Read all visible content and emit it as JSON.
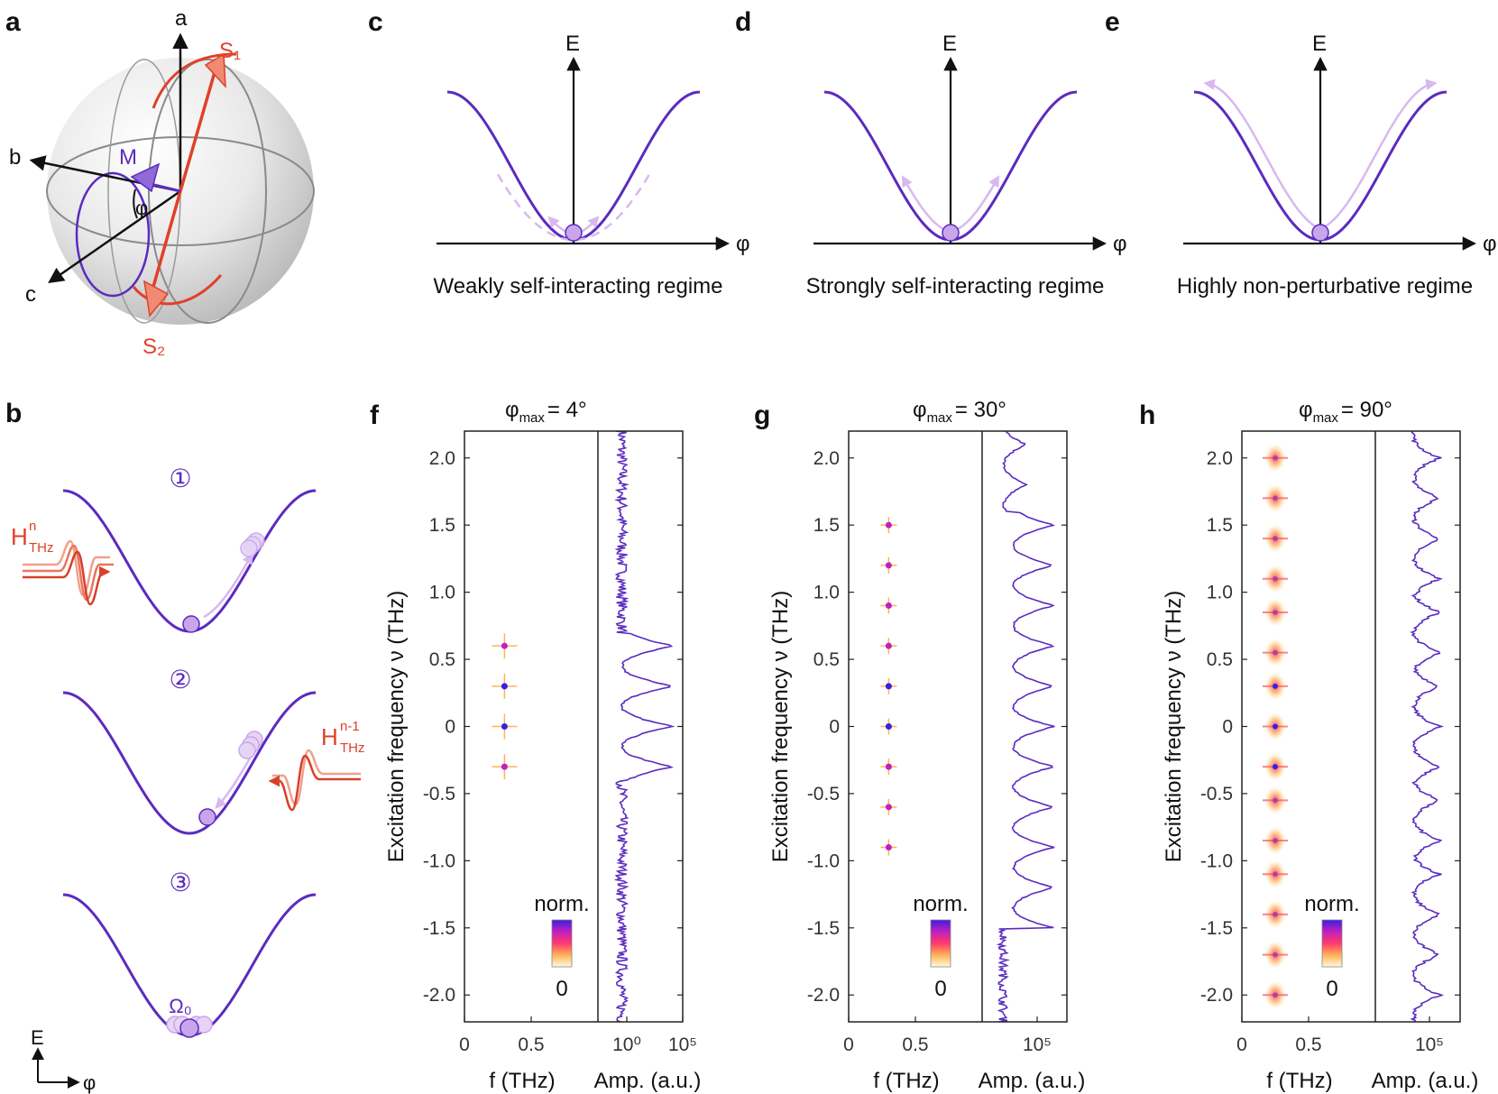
{
  "panel_labels": {
    "a": "a",
    "b": "b",
    "c": "c",
    "d": "d",
    "e": "e",
    "f": "f",
    "g": "g",
    "h": "h"
  },
  "sphere": {
    "axis_a": "a",
    "axis_b": "b",
    "axis_c": "c",
    "S1": "S₁",
    "S2": "S₂",
    "M": "M",
    "phi": "φ"
  },
  "potentials": [
    {
      "E": "E",
      "phi": "φ",
      "caption": "Weakly self-interacting regime"
    },
    {
      "E": "E",
      "phi": "φ",
      "caption": "Strongly self-interacting regime"
    },
    {
      "E": "E",
      "phi": "φ",
      "caption": "Highly non-perturbative regime"
    }
  ],
  "panel_b": {
    "steps": [
      "①",
      "②",
      "③"
    ],
    "pulse1_main": "H",
    "pulse1_sup": "n",
    "pulse1_sub": "THz",
    "pulse2_main": "H",
    "pulse2_sup": "n-1",
    "pulse2_sub": "THz",
    "omega": "Ω₀",
    "axis_E": "E",
    "axis_phi": "φ"
  },
  "colors": {
    "purple": "#5b2bbf",
    "light_purple": "#d8b8ef",
    "red": "#e0402a",
    "ball": "#c9a6ea"
  },
  "chart_data": [
    {
      "type": "heatmap",
      "panel": "f",
      "title_main": "φ",
      "title_sub": "max",
      "title_value": "= 4°",
      "ylabel": "Excitation frequency ν (THz)",
      "xlabel_left": "f (THz)",
      "xlabel_right": "Amp. (a.u.)",
      "xticks_left": [
        "0",
        "0.5"
      ],
      "xticks_right": [
        "10⁰",
        "10⁵"
      ],
      "yticks": [
        "2.0",
        "1.5",
        "1.0",
        "0.5",
        "0",
        "-0.5",
        "-1.0",
        "-1.5",
        "-2.0"
      ],
      "ylim": [
        -2.2,
        2.2
      ],
      "xlim_left": [
        0,
        1
      ],
      "peaks": [
        {
          "f": 0.3,
          "nu": 0.6
        },
        {
          "f": 0.3,
          "nu": 0.3
        },
        {
          "f": 0.3,
          "nu": 0.0
        },
        {
          "f": 0.3,
          "nu": -0.3
        }
      ],
      "colorbar_label": "norm.",
      "colorbar_zero": "0"
    },
    {
      "type": "heatmap",
      "panel": "g",
      "title_main": "φ",
      "title_sub": "max",
      "title_value": "= 30°",
      "ylabel": "Excitation frequency ν (THz)",
      "xlabel_left": "f (THz)",
      "xlabel_right": "Amp. (a.u.)",
      "xticks_left": [
        "0",
        "0.5"
      ],
      "xticks_right": [
        "10⁵"
      ],
      "yticks": [
        "2.0",
        "1.5",
        "1.0",
        "0.5",
        "0",
        "-0.5",
        "-1.0",
        "-1.5",
        "-2.0"
      ],
      "ylim": [
        -2.2,
        2.2
      ],
      "xlim_left": [
        0,
        1
      ],
      "peaks": [
        {
          "f": 0.3,
          "nu": 1.5
        },
        {
          "f": 0.3,
          "nu": 1.2
        },
        {
          "f": 0.3,
          "nu": 0.9
        },
        {
          "f": 0.3,
          "nu": 0.6
        },
        {
          "f": 0.3,
          "nu": 0.3
        },
        {
          "f": 0.3,
          "nu": 0.0
        },
        {
          "f": 0.3,
          "nu": -0.3
        },
        {
          "f": 0.3,
          "nu": -0.6
        },
        {
          "f": 0.3,
          "nu": -0.9
        }
      ],
      "colorbar_label": "norm.",
      "colorbar_zero": "0"
    },
    {
      "type": "heatmap",
      "panel": "h",
      "title_main": "φ",
      "title_sub": "max",
      "title_value": "= 90°",
      "ylabel": "Excitation frequency ν (THz)",
      "xlabel_left": "f (THz)",
      "xlabel_right": "Amp. (a.u.)",
      "xticks_left": [
        "0",
        "0.5"
      ],
      "xticks_right": [
        "10⁵"
      ],
      "yticks": [
        "2.0",
        "1.5",
        "1.0",
        "0.5",
        "0",
        "-0.5",
        "-1.0",
        "-1.5",
        "-2.0"
      ],
      "ylim": [
        -2.2,
        2.2
      ],
      "xlim_left": [
        0,
        1
      ],
      "peaks": [
        {
          "f": 0.25,
          "nu": 2.0
        },
        {
          "f": 0.25,
          "nu": 1.7
        },
        {
          "f": 0.25,
          "nu": 1.4
        },
        {
          "f": 0.25,
          "nu": 1.1
        },
        {
          "f": 0.25,
          "nu": 0.85
        },
        {
          "f": 0.25,
          "nu": 0.55
        },
        {
          "f": 0.25,
          "nu": 0.3
        },
        {
          "f": 0.25,
          "nu": 0.0
        },
        {
          "f": 0.25,
          "nu": -0.3
        },
        {
          "f": 0.25,
          "nu": -0.55
        },
        {
          "f": 0.25,
          "nu": -0.85
        },
        {
          "f": 0.25,
          "nu": -1.1
        },
        {
          "f": 0.25,
          "nu": -1.4
        },
        {
          "f": 0.25,
          "nu": -1.7
        },
        {
          "f": 0.25,
          "nu": -2.0
        }
      ],
      "colorbar_label": "norm.",
      "colorbar_zero": "0"
    }
  ]
}
